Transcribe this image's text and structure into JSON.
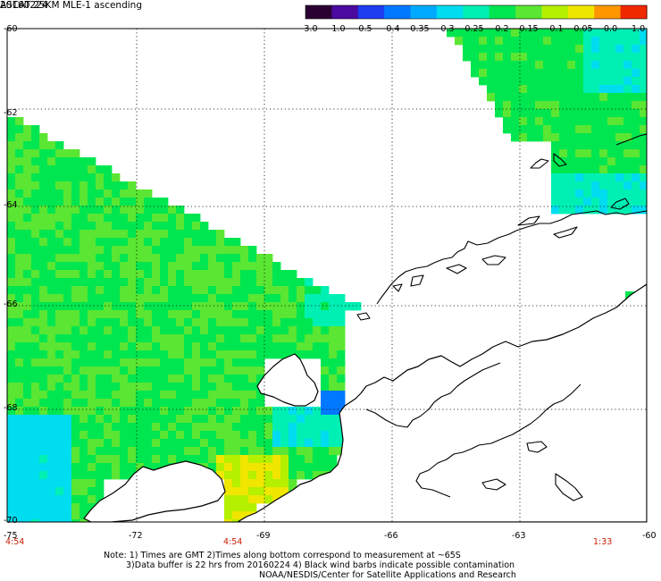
{
  "header": {
    "title": "ASCAT 25KM MLE-1 ascending",
    "date": "20160224"
  },
  "colorbar": {
    "labels": [
      "-3.0",
      "-1.0",
      "-0.5",
      "-0.4",
      "-0.35",
      "-0.3",
      "-0.25",
      "-0.2",
      "-0.15",
      "-0.1",
      "-0.05",
      "0.0",
      "1.0"
    ],
    "colors": [
      "#2a0033",
      "#4b0aa0",
      "#1e3cf0",
      "#0078ff",
      "#00aaff",
      "#00dcf0",
      "#00f0b4",
      "#00e650",
      "#5ae632",
      "#b4f000",
      "#f0e600",
      "#ff9600",
      "#f02800"
    ]
  },
  "map": {
    "lon_labels": [
      "-75",
      "-72",
      "-69",
      "-66",
      "-63",
      "-60"
    ],
    "lat_labels": [
      "-60",
      "-62",
      "-64",
      "-66",
      "-68",
      "-70"
    ],
    "lon_range": [
      -75,
      -60
    ],
    "lat_range": [
      -70,
      -60
    ],
    "grid": true,
    "land_color": "#ffffff",
    "coast_color": "#000000"
  },
  "times": [
    "4:54",
    "4:54",
    "1:33"
  ],
  "notes": {
    "line1": "Note: 1) Times are GMT 2)Times along bottom correspond to measurement at ~65S",
    "line2": "3)Data buffer is 22 hrs from 20160224 4) Black wind barbs indicate possible contamination",
    "line3": "NOAA/NESDIS/Center for Satellite Applications and Research"
  }
}
